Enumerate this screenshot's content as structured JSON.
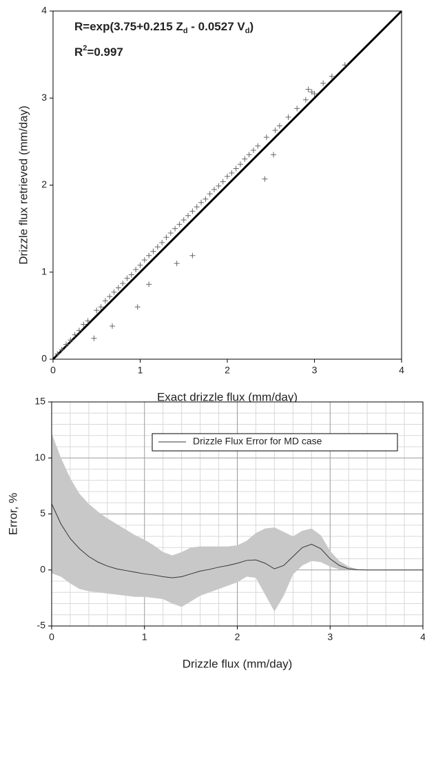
{
  "chart_data": [
    {
      "type": "scatter",
      "annotation": [
        "R=exp(3.75+0.215 Z",
        "d",
        " - 0.0527 V",
        "d",
        ")"
      ],
      "annotation2": [
        "R",
        "2",
        "=0.997"
      ],
      "x_label": "Exact drizzle flux (mm/day)",
      "y_label": "Drizzle flux retrieved (mm/day)",
      "xlim": [
        0,
        4
      ],
      "ylim": [
        0,
        4
      ],
      "xticks": [
        0,
        1,
        2,
        3,
        4
      ],
      "yticks": [
        0,
        1,
        2,
        3,
        4
      ],
      "grid": false,
      "points": {
        "color": "#666666",
        "x": [
          0.05,
          0.1,
          0.15,
          0.2,
          0.25,
          0.3,
          0.35,
          0.4,
          0.47,
          0.5,
          0.55,
          0.6,
          0.65,
          0.68,
          0.7,
          0.75,
          0.8,
          0.85,
          0.9,
          0.95,
          0.97,
          1.0,
          1.05,
          1.1,
          1.1,
          1.15,
          1.2,
          1.25,
          1.3,
          1.35,
          1.4,
          1.42,
          1.45,
          1.5,
          1.55,
          1.6,
          1.6,
          1.65,
          1.7,
          1.75,
          1.8,
          1.85,
          1.9,
          1.95,
          2.0,
          2.05,
          2.1,
          2.15,
          2.2,
          2.25,
          2.3,
          2.35,
          2.43,
          2.45,
          2.53,
          2.55,
          2.6,
          2.7,
          2.8,
          2.9,
          2.93,
          2.97,
          3.0,
          3.1,
          3.2,
          3.35
        ],
        "y": [
          0.06,
          0.11,
          0.17,
          0.22,
          0.28,
          0.33,
          0.4,
          0.44,
          0.24,
          0.56,
          0.6,
          0.67,
          0.72,
          0.38,
          0.77,
          0.82,
          0.87,
          0.93,
          0.97,
          1.03,
          0.6,
          1.08,
          1.14,
          0.86,
          1.19,
          1.24,
          1.29,
          1.34,
          1.4,
          1.45,
          1.5,
          1.1,
          1.55,
          1.6,
          1.65,
          1.19,
          1.7,
          1.75,
          1.8,
          1.84,
          1.9,
          1.95,
          1.99,
          2.04,
          2.1,
          2.14,
          2.19,
          2.24,
          2.3,
          2.35,
          2.4,
          2.45,
          2.07,
          2.55,
          2.35,
          2.63,
          2.68,
          2.78,
          2.88,
          2.98,
          3.1,
          3.07,
          3.05,
          3.17,
          3.25,
          3.38
        ]
      },
      "fit": {
        "color": "#000000",
        "x": [
          0,
          4
        ],
        "y": [
          0,
          4
        ]
      }
    },
    {
      "type": "line",
      "x_label": "Drizzle flux (mm/day)",
      "y_label": "Error, %",
      "xlim": [
        0,
        4
      ],
      "ylim": [
        -5,
        15
      ],
      "xticks": [
        0,
        1,
        2,
        3,
        4
      ],
      "yticks": [
        -5,
        0,
        5,
        10,
        15
      ],
      "grid": true,
      "x": [
        0,
        0.1,
        0.2,
        0.3,
        0.4,
        0.5,
        0.6,
        0.7,
        0.8,
        0.9,
        1.0,
        1.1,
        1.2,
        1.3,
        1.4,
        1.5,
        1.6,
        1.7,
        1.8,
        1.9,
        2.0,
        2.1,
        2.2,
        2.3,
        2.4,
        2.5,
        2.6,
        2.7,
        2.8,
        2.9,
        3.0,
        3.1,
        3.2,
        3.3,
        3.4,
        3.5,
        3.6,
        3.7,
        3.8,
        3.9,
        4.0
      ],
      "band": {
        "color": "#c8c8c8",
        "upper": [
          12.2,
          10,
          8.2,
          6.8,
          5.9,
          5.2,
          4.6,
          4.1,
          3.6,
          3.1,
          2.7,
          2.2,
          1.6,
          1.3,
          1.6,
          2.0,
          2.1,
          2.1,
          2.1,
          2.1,
          2.2,
          2.6,
          3.3,
          3.7,
          3.8,
          3.4,
          3.0,
          3.5,
          3.7,
          3.1,
          1.7,
          0.8,
          0.3,
          0.05,
          0,
          null,
          null,
          null,
          null,
          null,
          null
        ],
        "lower": [
          -0.3,
          -0.6,
          -1.2,
          -1.7,
          -1.9,
          -2.0,
          -2.1,
          -2.2,
          -2.3,
          -2.4,
          -2.4,
          -2.5,
          -2.6,
          -3.0,
          -3.3,
          -2.8,
          -2.3,
          -2.0,
          -1.7,
          -1.4,
          -1.1,
          -0.6,
          -0.7,
          -2.2,
          -3.7,
          -2.3,
          -0.4,
          0.4,
          0.8,
          0.7,
          0.3,
          0.05,
          0,
          0,
          0,
          null,
          null,
          null,
          null,
          null,
          null
        ]
      },
      "series": [
        {
          "name": "Drizzle Flux Error for MD case",
          "color": "#333333",
          "values": [
            5.9,
            4.1,
            2.8,
            1.9,
            1.2,
            0.7,
            0.35,
            0.1,
            -0.05,
            -0.2,
            -0.35,
            -0.45,
            -0.6,
            -0.7,
            -0.6,
            -0.35,
            -0.1,
            0.05,
            0.25,
            0.4,
            0.6,
            0.85,
            0.9,
            0.6,
            0.1,
            0.4,
            1.2,
            2.0,
            2.3,
            1.9,
            1.0,
            0.4,
            0.1,
            0.02,
            0,
            0,
            0,
            0,
            0,
            0,
            0
          ]
        }
      ]
    }
  ]
}
